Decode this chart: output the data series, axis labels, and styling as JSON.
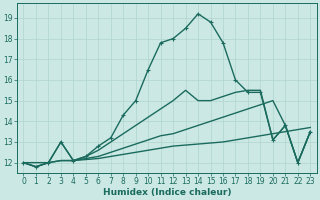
{
  "xlabel": "Humidex (Indice chaleur)",
  "bg_color": "#cce8e4",
  "line_color": "#1a6b5e",
  "grid_color": "#b0d4ce",
  "xlim": [
    -0.5,
    23.5
  ],
  "ylim": [
    11.5,
    19.7
  ],
  "xticks": [
    0,
    1,
    2,
    3,
    4,
    5,
    6,
    7,
    8,
    9,
    10,
    11,
    12,
    13,
    14,
    15,
    16,
    17,
    18,
    19,
    20,
    21,
    22,
    23
  ],
  "yticks": [
    12,
    13,
    14,
    15,
    16,
    17,
    18,
    19
  ],
  "series": [
    {
      "x": [
        0,
        1,
        2,
        3,
        4,
        5,
        6,
        7,
        8,
        9,
        10,
        11,
        12,
        13,
        14,
        15,
        16,
        17,
        18,
        19,
        20,
        21,
        22,
        23
      ],
      "y": [
        12,
        11.8,
        12.0,
        12.1,
        12.1,
        12.15,
        12.2,
        12.3,
        12.4,
        12.5,
        12.6,
        12.7,
        12.8,
        12.85,
        12.9,
        12.95,
        13.0,
        13.1,
        13.2,
        13.3,
        13.4,
        13.5,
        13.6,
        13.7
      ],
      "marker": false,
      "lw": 1.0
    },
    {
      "x": [
        0,
        1,
        2,
        3,
        4,
        5,
        6,
        7,
        8,
        9,
        10,
        11,
        12,
        13,
        14,
        15,
        16,
        17,
        18,
        19,
        20,
        21,
        22,
        23
      ],
      "y": [
        12,
        11.8,
        12.0,
        12.1,
        12.1,
        12.2,
        12.3,
        12.5,
        12.7,
        12.9,
        13.1,
        13.3,
        13.4,
        13.6,
        13.8,
        14.0,
        14.2,
        14.4,
        14.6,
        14.8,
        15.0,
        13.8,
        12.0,
        13.5
      ],
      "marker": false,
      "lw": 1.0
    },
    {
      "x": [
        0,
        2,
        3,
        4,
        5,
        6,
        7,
        8,
        9,
        10,
        11,
        12,
        13,
        14,
        15,
        16,
        17,
        18,
        19,
        20,
        21,
        22,
        23
      ],
      "y": [
        12,
        12.0,
        13.0,
        12.1,
        12.3,
        12.6,
        13.0,
        13.4,
        13.8,
        14.2,
        14.6,
        15.0,
        15.5,
        15.0,
        15.0,
        15.2,
        15.4,
        15.5,
        15.5,
        13.1,
        13.8,
        12.0,
        13.5
      ],
      "marker": false,
      "lw": 1.0
    },
    {
      "x": [
        0,
        1,
        2,
        3,
        4,
        5,
        6,
        7,
        8,
        9,
        10,
        11,
        12,
        13,
        14,
        15,
        16,
        17,
        18,
        19,
        20,
        21,
        22,
        23
      ],
      "y": [
        12,
        11.8,
        12.0,
        13.0,
        12.1,
        12.3,
        12.8,
        13.2,
        14.3,
        15.0,
        16.5,
        17.8,
        18.0,
        18.5,
        19.2,
        18.8,
        17.8,
        16.0,
        15.4,
        15.4,
        13.1,
        13.8,
        12.0,
        13.5
      ],
      "marker": true,
      "lw": 1.0
    }
  ]
}
